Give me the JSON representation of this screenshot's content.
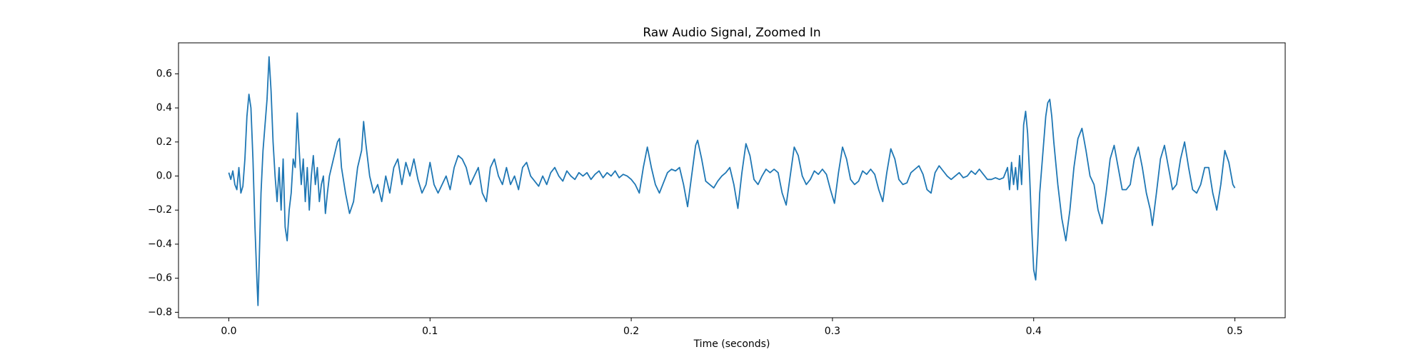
{
  "chart_data": {
    "type": "line",
    "title": "Raw Audio Signal, Zoomed In",
    "x_label": "Time (seconds)",
    "xlim": [
      -0.025,
      0.525
    ],
    "ylim": [
      -0.832,
      0.782
    ],
    "xticks": [
      {
        "value": 0,
        "label": "0.0"
      },
      0.1,
      0.2,
      0.3,
      0.4,
      0.5
    ],
    "yticks": [
      {
        "value": -0.8,
        "label": "−0.8"
      },
      {
        "value": -0.6,
        "label": "−0.6"
      },
      {
        "value": -0.4,
        "label": "−0.4"
      },
      {
        "value": -0.2,
        "label": "−0.2"
      },
      {
        "value": 0,
        "label": "0.0"
      },
      0.2,
      0.4,
      0.6
    ],
    "grid": false,
    "x": [
      0.0,
      0.001,
      0.002,
      0.003,
      0.004,
      0.005,
      0.006,
      0.007,
      0.008,
      0.009,
      0.01,
      0.011,
      0.012,
      0.013,
      0.014,
      0.0145,
      0.015,
      0.016,
      0.017,
      0.018,
      0.019,
      0.02,
      0.021,
      0.022,
      0.023,
      0.024,
      0.025,
      0.026,
      0.027,
      0.028,
      0.029,
      0.03,
      0.031,
      0.032,
      0.033,
      0.034,
      0.035,
      0.036,
      0.037,
      0.038,
      0.039,
      0.04,
      0.041,
      0.042,
      0.043,
      0.044,
      0.045,
      0.046,
      0.047,
      0.048,
      0.049,
      0.05,
      0.052,
      0.054,
      0.055,
      0.056,
      0.058,
      0.06,
      0.062,
      0.064,
      0.066,
      0.067,
      0.068,
      0.07,
      0.072,
      0.074,
      0.076,
      0.078,
      0.08,
      0.082,
      0.084,
      0.086,
      0.088,
      0.09,
      0.092,
      0.094,
      0.096,
      0.098,
      0.1,
      0.102,
      0.104,
      0.106,
      0.108,
      0.11,
      0.112,
      0.114,
      0.116,
      0.118,
      0.12,
      0.122,
      0.124,
      0.126,
      0.128,
      0.13,
      0.132,
      0.134,
      0.136,
      0.138,
      0.14,
      0.142,
      0.144,
      0.146,
      0.148,
      0.15,
      0.152,
      0.154,
      0.156,
      0.158,
      0.16,
      0.162,
      0.164,
      0.166,
      0.168,
      0.17,
      0.172,
      0.174,
      0.176,
      0.178,
      0.18,
      0.182,
      0.184,
      0.186,
      0.188,
      0.19,
      0.192,
      0.194,
      0.196,
      0.198,
      0.2,
      0.202,
      0.204,
      0.206,
      0.208,
      0.21,
      0.212,
      0.214,
      0.216,
      0.218,
      0.22,
      0.222,
      0.224,
      0.226,
      0.228,
      0.23,
      0.232,
      0.233,
      0.235,
      0.237,
      0.239,
      0.241,
      0.243,
      0.245,
      0.247,
      0.249,
      0.251,
      0.253,
      0.255,
      0.257,
      0.259,
      0.261,
      0.263,
      0.265,
      0.267,
      0.269,
      0.271,
      0.273,
      0.275,
      0.277,
      0.279,
      0.281,
      0.283,
      0.285,
      0.287,
      0.289,
      0.291,
      0.293,
      0.295,
      0.297,
      0.299,
      0.301,
      0.303,
      0.305,
      0.307,
      0.309,
      0.311,
      0.313,
      0.315,
      0.317,
      0.319,
      0.321,
      0.323,
      0.325,
      0.327,
      0.329,
      0.331,
      0.333,
      0.335,
      0.337,
      0.339,
      0.341,
      0.343,
      0.345,
      0.347,
      0.349,
      0.351,
      0.353,
      0.355,
      0.357,
      0.359,
      0.361,
      0.363,
      0.365,
      0.367,
      0.369,
      0.371,
      0.373,
      0.375,
      0.377,
      0.379,
      0.381,
      0.383,
      0.385,
      0.387,
      0.388,
      0.389,
      0.39,
      0.391,
      0.392,
      0.393,
      0.394,
      0.395,
      0.396,
      0.397,
      0.398,
      0.399,
      0.4,
      0.401,
      0.402,
      0.403,
      0.404,
      0.405,
      0.406,
      0.407,
      0.408,
      0.409,
      0.41,
      0.412,
      0.414,
      0.416,
      0.418,
      0.42,
      0.422,
      0.424,
      0.426,
      0.428,
      0.43,
      0.432,
      0.434,
      0.436,
      0.438,
      0.44,
      0.442,
      0.444,
      0.446,
      0.448,
      0.45,
      0.452,
      0.454,
      0.456,
      0.458,
      0.459,
      0.461,
      0.463,
      0.465,
      0.467,
      0.469,
      0.471,
      0.473,
      0.475,
      0.477,
      0.479,
      0.481,
      0.483,
      0.485,
      0.487,
      0.489,
      0.491,
      0.493,
      0.495,
      0.497,
      0.499,
      0.5
    ],
    "series": [
      {
        "color": "#1f77b4",
        "values": [
          0.02,
          -0.02,
          0.03,
          -0.05,
          -0.08,
          0.05,
          -0.1,
          -0.06,
          0.1,
          0.35,
          0.48,
          0.4,
          0.1,
          -0.3,
          -0.62,
          -0.76,
          -0.55,
          -0.1,
          0.15,
          0.3,
          0.45,
          0.7,
          0.5,
          0.2,
          0.0,
          -0.15,
          0.05,
          -0.2,
          0.1,
          -0.3,
          -0.38,
          -0.2,
          -0.1,
          0.1,
          0.05,
          0.37,
          0.15,
          -0.05,
          0.1,
          -0.15,
          0.05,
          -0.2,
          0.0,
          0.12,
          -0.05,
          0.05,
          -0.15,
          -0.05,
          0.0,
          -0.22,
          -0.1,
          0.0,
          0.1,
          0.2,
          0.22,
          0.05,
          -0.1,
          -0.22,
          -0.15,
          0.05,
          0.15,
          0.32,
          0.2,
          0.0,
          -0.1,
          -0.05,
          -0.15,
          0.0,
          -0.1,
          0.05,
          0.1,
          -0.05,
          0.08,
          0.0,
          0.1,
          -0.02,
          -0.1,
          -0.05,
          0.08,
          -0.05,
          -0.1,
          -0.05,
          0.0,
          -0.08,
          0.05,
          0.12,
          0.1,
          0.05,
          -0.05,
          0.0,
          0.05,
          -0.1,
          -0.15,
          0.05,
          0.1,
          0.0,
          -0.05,
          0.05,
          -0.05,
          0.0,
          -0.08,
          0.05,
          0.08,
          0.0,
          -0.03,
          -0.06,
          0.0,
          -0.05,
          0.02,
          0.05,
          0.0,
          -0.03,
          0.03,
          0.0,
          -0.02,
          0.02,
          0.0,
          0.02,
          -0.02,
          0.01,
          0.03,
          -0.01,
          0.02,
          0.0,
          0.03,
          -0.01,
          0.01,
          0.0,
          -0.02,
          -0.05,
          -0.1,
          0.05,
          0.17,
          0.05,
          -0.05,
          -0.1,
          -0.04,
          0.02,
          0.04,
          0.03,
          0.05,
          -0.05,
          -0.18,
          0.0,
          0.18,
          0.21,
          0.1,
          -0.03,
          -0.05,
          -0.07,
          -0.03,
          0.0,
          0.02,
          0.05,
          -0.05,
          -0.19,
          0.02,
          0.19,
          0.12,
          -0.02,
          -0.05,
          0.0,
          0.04,
          0.02,
          0.04,
          0.02,
          -0.1,
          -0.17,
          0.0,
          0.17,
          0.12,
          0.0,
          -0.05,
          -0.02,
          0.03,
          0.01,
          0.04,
          0.01,
          -0.08,
          -0.16,
          0.02,
          0.17,
          0.1,
          -0.02,
          -0.05,
          -0.03,
          0.03,
          0.01,
          0.04,
          0.01,
          -0.08,
          -0.15,
          0.02,
          0.16,
          0.1,
          -0.02,
          -0.05,
          -0.04,
          0.02,
          0.04,
          0.06,
          0.01,
          -0.08,
          -0.1,
          0.02,
          0.06,
          0.03,
          0.0,
          -0.02,
          0.0,
          0.02,
          -0.01,
          0.0,
          0.03,
          0.01,
          0.04,
          0.01,
          -0.02,
          -0.02,
          -0.01,
          -0.02,
          -0.01,
          0.05,
          -0.08,
          0.08,
          -0.05,
          0.05,
          -0.08,
          0.12,
          -0.05,
          0.3,
          0.38,
          0.25,
          0.0,
          -0.3,
          -0.55,
          -0.61,
          -0.4,
          -0.1,
          0.05,
          0.2,
          0.35,
          0.43,
          0.45,
          0.35,
          0.2,
          -0.05,
          -0.25,
          -0.38,
          -0.2,
          0.05,
          0.22,
          0.28,
          0.15,
          0.0,
          -0.05,
          -0.2,
          -0.28,
          -0.1,
          0.1,
          0.18,
          0.05,
          -0.08,
          -0.08,
          -0.05,
          0.1,
          0.17,
          0.05,
          -0.1,
          -0.2,
          -0.29,
          -0.1,
          0.1,
          0.18,
          0.05,
          -0.08,
          -0.05,
          0.1,
          0.2,
          0.05,
          -0.08,
          -0.1,
          -0.05,
          0.05,
          0.05,
          -0.1,
          -0.2,
          -0.05,
          0.15,
          0.08,
          -0.05,
          -0.07
        ]
      }
    ]
  }
}
